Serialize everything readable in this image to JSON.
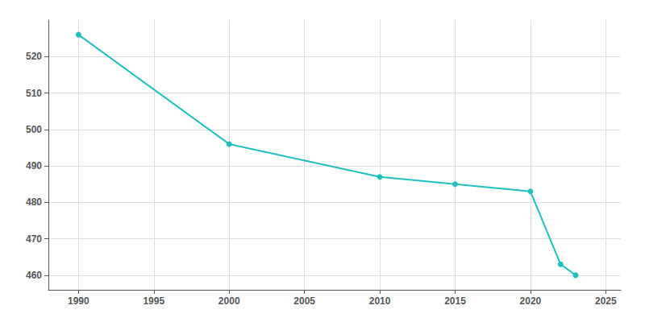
{
  "chart_data": {
    "type": "line",
    "x": [
      1990,
      2000,
      2010,
      2015,
      2020,
      2022,
      2023
    ],
    "values": [
      526,
      496,
      487,
      485,
      483,
      463,
      460
    ],
    "color": "#21BFBF",
    "marker": "circle",
    "xlim": [
      1988,
      2026
    ],
    "ylim": [
      456,
      530
    ],
    "xticks": [
      1990,
      1995,
      2000,
      2005,
      2010,
      2015,
      2020,
      2025
    ],
    "yticks": [
      460,
      470,
      480,
      490,
      500,
      510,
      520
    ],
    "grid": true
  }
}
